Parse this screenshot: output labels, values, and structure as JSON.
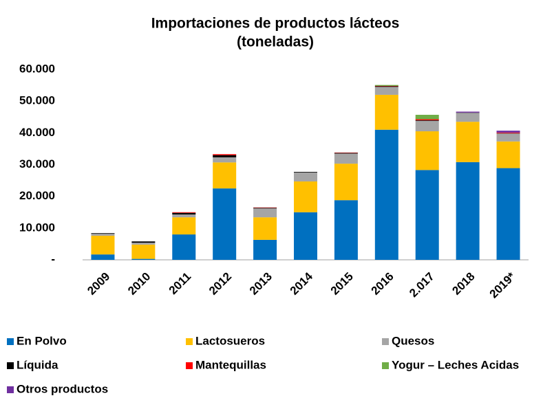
{
  "chart_data": {
    "type": "stacked_bar",
    "title": [
      "Importaciones de productos lácteos",
      "(toneladas)"
    ],
    "categories": [
      "2009",
      "2010",
      "2011",
      "2012",
      "2013",
      "2014",
      "2015",
      "2016",
      "2.017",
      "2018",
      "2019*"
    ],
    "series": [
      {
        "name": "En Polvo",
        "color": "#0070c0",
        "values": [
          1700,
          300,
          8000,
          22500,
          6300,
          15000,
          18800,
          41000,
          28300,
          30800,
          28900
        ]
      },
      {
        "name": "Lactosueros",
        "color": "#ffc000",
        "values": [
          5900,
          4500,
          5400,
          8200,
          7100,
          9700,
          11500,
          11000,
          12200,
          12700,
          8400
        ]
      },
      {
        "name": "Quesos",
        "color": "#a5a5a5",
        "values": [
          600,
          600,
          900,
          1600,
          2800,
          2800,
          3200,
          2500,
          3300,
          2800,
          2500
        ]
      },
      {
        "name": "Líquida",
        "color": "#000000",
        "values": [
          200,
          400,
          500,
          700,
          200,
          200,
          200,
          200,
          200,
          100,
          100
        ]
      },
      {
        "name": "Mantequillas",
        "color": "#ff0000",
        "values": [
          0,
          0,
          200,
          300,
          100,
          0,
          100,
          100,
          300,
          0,
          200
        ]
      },
      {
        "name": "Yogur – Leches Acidas",
        "color": "#70ad47",
        "values": [
          0,
          0,
          0,
          0,
          0,
          0,
          0,
          300,
          1400,
          0,
          0
        ]
      },
      {
        "name": "Otros productos",
        "color": "#7030a0",
        "values": [
          0,
          0,
          0,
          0,
          0,
          0,
          0,
          0,
          0,
          300,
          600
        ]
      }
    ],
    "ylim": [
      0,
      60000
    ],
    "yticks": [
      {
        "value": 0,
        "label": "-"
      },
      {
        "value": 10000,
        "label": "10.000"
      },
      {
        "value": 20000,
        "label": "20.000"
      },
      {
        "value": 30000,
        "label": "30.000"
      },
      {
        "value": 40000,
        "label": "40.000"
      },
      {
        "value": 50000,
        "label": "50.000"
      },
      {
        "value": 60000,
        "label": "60.000"
      }
    ],
    "grid": false
  }
}
